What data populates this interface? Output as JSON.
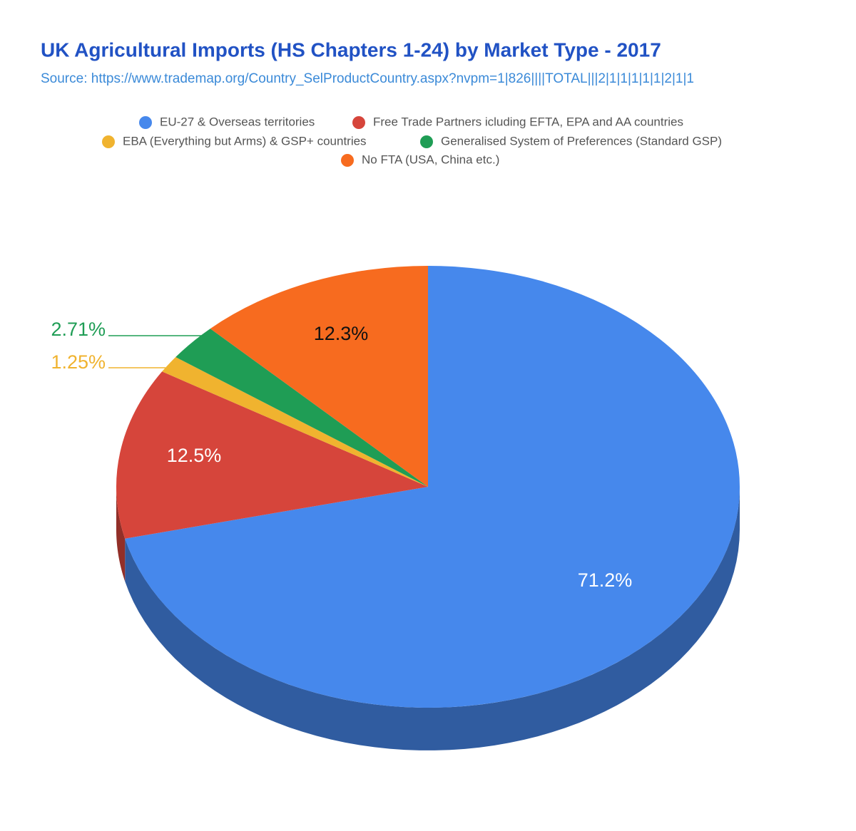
{
  "chart_data": {
    "type": "pie",
    "title": "UK Agricultural Imports (HS Chapters 1-24) by Market Type  - 2017",
    "subtitle": "Source: https://www.trademap.org/Country_SelProductCountry.aspx?nvpm=1|826||||TOTAL|||2|1|1|1|1|1|2|1|1",
    "categories": [
      "EU-27 & Overseas territories",
      "Free Trade Partners icluding EFTA, EPA and AA countries",
      "EBA (Everything but Arms)  & GSP+ countries",
      "Generalised System of Preferences (Standard GSP)",
      "No FTA (USA, China etc.)"
    ],
    "values": [
      71.2,
      12.5,
      1.25,
      2.71,
      12.3
    ],
    "value_labels": [
      "71.2%",
      "12.5%",
      "1.25%",
      "2.71%",
      "12.3%"
    ],
    "colors": [
      "#4688ec",
      "#d6453b",
      "#f0b32f",
      "#1f9d55",
      "#f76b1f"
    ],
    "legend": "top"
  }
}
